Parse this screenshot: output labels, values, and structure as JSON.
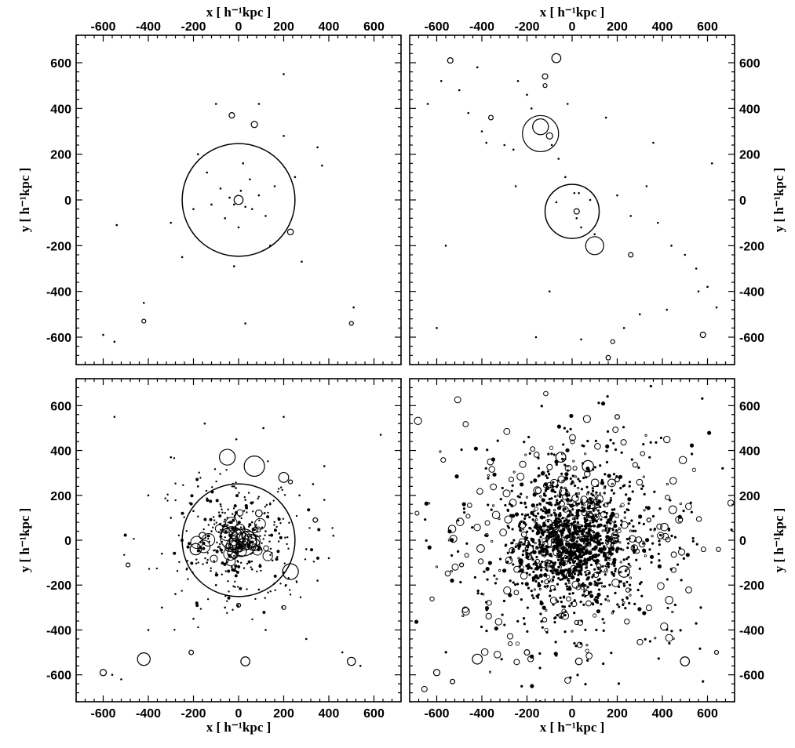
{
  "chart_data": [
    {
      "type": "scatter",
      "panel": "top-left",
      "xlim": [
        -720,
        720
      ],
      "ylim": [
        -720,
        720
      ],
      "xticks": [
        -600,
        -400,
        -200,
        0,
        200,
        400,
        600
      ],
      "yticks": [
        -600,
        -400,
        -200,
        0,
        200,
        400,
        600
      ],
      "xlabel": "x [ h⁻¹kpc ]",
      "ylabel": "y [ h⁻¹kpc ]",
      "xlabel_position": "top",
      "ylabel_position": "left",
      "grid": false,
      "circles": [
        {
          "x": 0,
          "y": 0,
          "r": 250
        },
        {
          "x": -30,
          "y": 370,
          "r": 12
        },
        {
          "x": 70,
          "y": 330,
          "r": 14
        },
        {
          "x": 230,
          "y": -140,
          "r": 13
        },
        {
          "x": 0,
          "y": 0,
          "r": 20
        },
        {
          "x": -420,
          "y": -530,
          "r": 8
        },
        {
          "x": 500,
          "y": -540,
          "r": 6
        }
      ],
      "points": [
        {
          "x": -40,
          "y": 10
        },
        {
          "x": -20,
          "y": -20
        },
        {
          "x": 10,
          "y": 40
        },
        {
          "x": 30,
          "y": -30
        },
        {
          "x": 60,
          "y": -40
        },
        {
          "x": -80,
          "y": 50
        },
        {
          "x": 50,
          "y": 90
        },
        {
          "x": -120,
          "y": -20
        },
        {
          "x": -200,
          "y": -40
        },
        {
          "x": 90,
          "y": 20
        },
        {
          "x": -60,
          "y": -80
        },
        {
          "x": 120,
          "y": -70
        },
        {
          "x": 20,
          "y": 160
        },
        {
          "x": -140,
          "y": 120
        },
        {
          "x": 160,
          "y": 60
        },
        {
          "x": -100,
          "y": 420
        },
        {
          "x": 90,
          "y": 420
        },
        {
          "x": 200,
          "y": 280
        },
        {
          "x": 350,
          "y": 230
        },
        {
          "x": 370,
          "y": 150
        },
        {
          "x": -300,
          "y": -100
        },
        {
          "x": -540,
          "y": -110
        },
        {
          "x": -420,
          "y": -450
        },
        {
          "x": -600,
          "y": -590
        },
        {
          "x": -550,
          "y": -620
        },
        {
          "x": 30,
          "y": -540
        },
        {
          "x": 510,
          "y": -470
        },
        {
          "x": 280,
          "y": -270
        },
        {
          "x": -20,
          "y": -290
        },
        {
          "x": 200,
          "y": 550
        },
        {
          "x": -250,
          "y": -250
        },
        {
          "x": 0,
          "y": -120
        },
        {
          "x": 140,
          "y": -200
        },
        {
          "x": -180,
          "y": 200
        },
        {
          "x": 250,
          "y": 100
        }
      ]
    },
    {
      "type": "scatter",
      "panel": "top-right",
      "xlim": [
        -720,
        720
      ],
      "ylim": [
        -720,
        720
      ],
      "xticks": [
        -600,
        -400,
        -200,
        0,
        200,
        400,
        600
      ],
      "yticks": [
        -600,
        -400,
        -200,
        0,
        200,
        400,
        600
      ],
      "xlabel": "x [ h⁻¹kpc ]",
      "ylabel": "y [ h⁻¹kpc ]",
      "xlabel_position": "top",
      "ylabel_position": "right",
      "grid": false,
      "circles": [
        {
          "x": -140,
          "y": 290,
          "r": 80
        },
        {
          "x": -140,
          "y": 320,
          "r": 35
        },
        {
          "x": 0,
          "y": -50,
          "r": 120
        },
        {
          "x": 100,
          "y": -200,
          "r": 40
        },
        {
          "x": -70,
          "y": 620,
          "r": 20
        },
        {
          "x": -540,
          "y": 610,
          "r": 12
        },
        {
          "x": -360,
          "y": 360,
          "r": 10
        },
        {
          "x": -120,
          "y": 540,
          "r": 12
        },
        {
          "x": -100,
          "y": 280,
          "r": 14
        },
        {
          "x": 260,
          "y": -240,
          "r": 10
        },
        {
          "x": 20,
          "y": -50,
          "r": 12
        },
        {
          "x": 580,
          "y": -590,
          "r": 12
        },
        {
          "x": 180,
          "y": -620,
          "r": 8
        },
        {
          "x": 160,
          "y": -690,
          "r": 10
        },
        {
          "x": -120,
          "y": 500,
          "r": 8
        }
      ],
      "points": [
        {
          "x": -640,
          "y": 420
        },
        {
          "x": -580,
          "y": 520
        },
        {
          "x": -500,
          "y": 480
        },
        {
          "x": -460,
          "y": 380
        },
        {
          "x": -400,
          "y": 300
        },
        {
          "x": -380,
          "y": 250
        },
        {
          "x": -300,
          "y": 240
        },
        {
          "x": -260,
          "y": 220
        },
        {
          "x": -240,
          "y": 520
        },
        {
          "x": -200,
          "y": 460
        },
        {
          "x": -180,
          "y": 400
        },
        {
          "x": -90,
          "y": 240
        },
        {
          "x": -60,
          "y": 180
        },
        {
          "x": -30,
          "y": 100
        },
        {
          "x": 10,
          "y": 30
        },
        {
          "x": 40,
          "y": -120
        },
        {
          "x": 100,
          "y": -150
        },
        {
          "x": 200,
          "y": 20
        },
        {
          "x": 260,
          "y": -70
        },
        {
          "x": 330,
          "y": 60
        },
        {
          "x": 380,
          "y": -100
        },
        {
          "x": 440,
          "y": -200
        },
        {
          "x": 500,
          "y": -240
        },
        {
          "x": 550,
          "y": -300
        },
        {
          "x": 600,
          "y": -380
        },
        {
          "x": 640,
          "y": -470
        },
        {
          "x": 560,
          "y": -400
        },
        {
          "x": 300,
          "y": -500
        },
        {
          "x": 230,
          "y": -560
        },
        {
          "x": 40,
          "y": -610
        },
        {
          "x": -100,
          "y": -400
        },
        {
          "x": -160,
          "y": -600
        },
        {
          "x": -420,
          "y": 580
        },
        {
          "x": -20,
          "y": 420
        },
        {
          "x": 150,
          "y": 360
        },
        {
          "x": 360,
          "y": 250
        },
        {
          "x": -250,
          "y": 60
        },
        {
          "x": -560,
          "y": -200
        },
        {
          "x": -600,
          "y": -560
        },
        {
          "x": 620,
          "y": 160
        },
        {
          "x": 420,
          "y": -480
        },
        {
          "x": 80,
          "y": 0
        },
        {
          "x": -70,
          "y": -10
        },
        {
          "x": 20,
          "y": -80
        },
        {
          "x": 30,
          "y": 30
        }
      ]
    },
    {
      "type": "scatter",
      "panel": "bottom-left",
      "xlim": [
        -720,
        720
      ],
      "ylim": [
        -720,
        720
      ],
      "xticks": [
        -600,
        -400,
        -200,
        0,
        200,
        400,
        600
      ],
      "yticks": [
        -600,
        -400,
        -200,
        0,
        200,
        400,
        600
      ],
      "xlabel": "x [ h⁻¹kpc ]",
      "ylabel": "y [ h⁻¹kpc ]",
      "xlabel_position": "bottom",
      "ylabel_position": "left",
      "grid": false,
      "circles": [
        {
          "x": 0,
          "y": 0,
          "r": 250
        },
        {
          "x": -30,
          "y": 10,
          "r": 50
        },
        {
          "x": 20,
          "y": -10,
          "r": 60
        },
        {
          "x": 40,
          "y": 0,
          "r": 40
        },
        {
          "x": 0,
          "y": 20,
          "r": 30
        },
        {
          "x": -50,
          "y": 370,
          "r": 35
        },
        {
          "x": 70,
          "y": 330,
          "r": 45
        },
        {
          "x": 200,
          "y": 280,
          "r": 22
        },
        {
          "x": 230,
          "y": -140,
          "r": 35
        },
        {
          "x": -190,
          "y": -40,
          "r": 25
        },
        {
          "x": -420,
          "y": -530,
          "r": 28
        },
        {
          "x": 30,
          "y": -540,
          "r": 20
        },
        {
          "x": 500,
          "y": -540,
          "r": 18
        },
        {
          "x": -600,
          "y": -590,
          "r": 14
        },
        {
          "x": -210,
          "y": -500,
          "r": 10
        },
        {
          "x": -160,
          "y": 20,
          "r": 15
        },
        {
          "x": 90,
          "y": 120,
          "r": 15
        },
        {
          "x": 340,
          "y": 90,
          "r": 10
        },
        {
          "x": -490,
          "y": -110,
          "r": 8
        },
        {
          "x": 200,
          "y": -300,
          "r": 8
        },
        {
          "x": 0,
          "y": -290,
          "r": 8
        },
        {
          "x": 230,
          "y": 260,
          "r": 8
        }
      ],
      "points": [
        {
          "x": -120,
          "y": 40
        },
        {
          "x": -90,
          "y": -30
        },
        {
          "x": -60,
          "y": 70
        },
        {
          "x": 60,
          "y": 80
        },
        {
          "x": 100,
          "y": -40
        },
        {
          "x": 120,
          "y": 40
        },
        {
          "x": 150,
          "y": -90
        },
        {
          "x": -140,
          "y": -100
        },
        {
          "x": -30,
          "y": -120
        },
        {
          "x": 60,
          "y": -130
        },
        {
          "x": -80,
          "y": 160
        },
        {
          "x": 30,
          "y": 180
        },
        {
          "x": 140,
          "y": 160
        },
        {
          "x": -200,
          "y": 130
        },
        {
          "x": 180,
          "y": 30
        },
        {
          "x": -230,
          "y": -130
        },
        {
          "x": -100,
          "y": -200
        },
        {
          "x": 90,
          "y": -220
        },
        {
          "x": 210,
          "y": -200
        },
        {
          "x": -180,
          "y": 240
        },
        {
          "x": 270,
          "y": 200
        },
        {
          "x": 330,
          "y": 250
        },
        {
          "x": 380,
          "y": 180
        },
        {
          "x": 400,
          "y": -80
        },
        {
          "x": 350,
          "y": -180
        },
        {
          "x": -300,
          "y": 100
        },
        {
          "x": -340,
          "y": -60
        },
        {
          "x": -280,
          "y": -240
        },
        {
          "x": 300,
          "y": -40
        },
        {
          "x": -20,
          "y": 240
        },
        {
          "x": -150,
          "y": 520
        },
        {
          "x": -10,
          "y": 450
        },
        {
          "x": 110,
          "y": 500
        },
        {
          "x": 200,
          "y": 550
        },
        {
          "x": -300,
          "y": 370
        },
        {
          "x": 380,
          "y": 330
        },
        {
          "x": -400,
          "y": -400
        },
        {
          "x": -340,
          "y": -300
        },
        {
          "x": -520,
          "y": -620
        },
        {
          "x": -560,
          "y": -600
        },
        {
          "x": 460,
          "y": -500
        },
        {
          "x": 540,
          "y": -560
        },
        {
          "x": 120,
          "y": -400
        },
        {
          "x": 300,
          "y": -440
        },
        {
          "x": -200,
          "y": -350
        },
        {
          "x": -550,
          "y": 550
        },
        {
          "x": 630,
          "y": 470
        },
        {
          "x": -400,
          "y": 200
        },
        {
          "x": 420,
          "y": 20
        },
        {
          "x": -60,
          "y": -300
        }
      ]
    },
    {
      "type": "scatter",
      "panel": "bottom-right",
      "xlim": [
        -720,
        720
      ],
      "ylim": [
        -720,
        720
      ],
      "xticks": [
        -600,
        -400,
        -200,
        0,
        200,
        400,
        600
      ],
      "yticks": [
        -600,
        -400,
        -200,
        0,
        200,
        400,
        600
      ],
      "xlabel": "x [ h⁻¹kpc ]",
      "ylabel": "y [ h⁻¹kpc ]",
      "xlabel_position": "bottom",
      "ylabel_position": "right",
      "grid": false,
      "circles": [
        {
          "x": -50,
          "y": 370,
          "r": 22
        },
        {
          "x": 70,
          "y": 330,
          "r": 25
        },
        {
          "x": 230,
          "y": -140,
          "r": 25
        },
        {
          "x": -190,
          "y": -40,
          "r": 18
        },
        {
          "x": -420,
          "y": -530,
          "r": 22
        },
        {
          "x": 500,
          "y": -540,
          "r": 20
        },
        {
          "x": 30,
          "y": -540,
          "r": 15
        },
        {
          "x": -530,
          "y": -630,
          "r": 10
        },
        {
          "x": -600,
          "y": -590,
          "r": 14
        },
        {
          "x": -200,
          "y": -500,
          "r": 12
        },
        {
          "x": 200,
          "y": 550,
          "r": 10
        },
        {
          "x": 200,
          "y": 270,
          "r": 10
        },
        {
          "x": 340,
          "y": 90,
          "r": 8
        },
        {
          "x": -490,
          "y": -110,
          "r": 8
        },
        {
          "x": 640,
          "y": -500,
          "r": 8
        }
      ],
      "cluster_points_note": "dense cloud of subhalo markers concentrated near the centre"
    }
  ]
}
